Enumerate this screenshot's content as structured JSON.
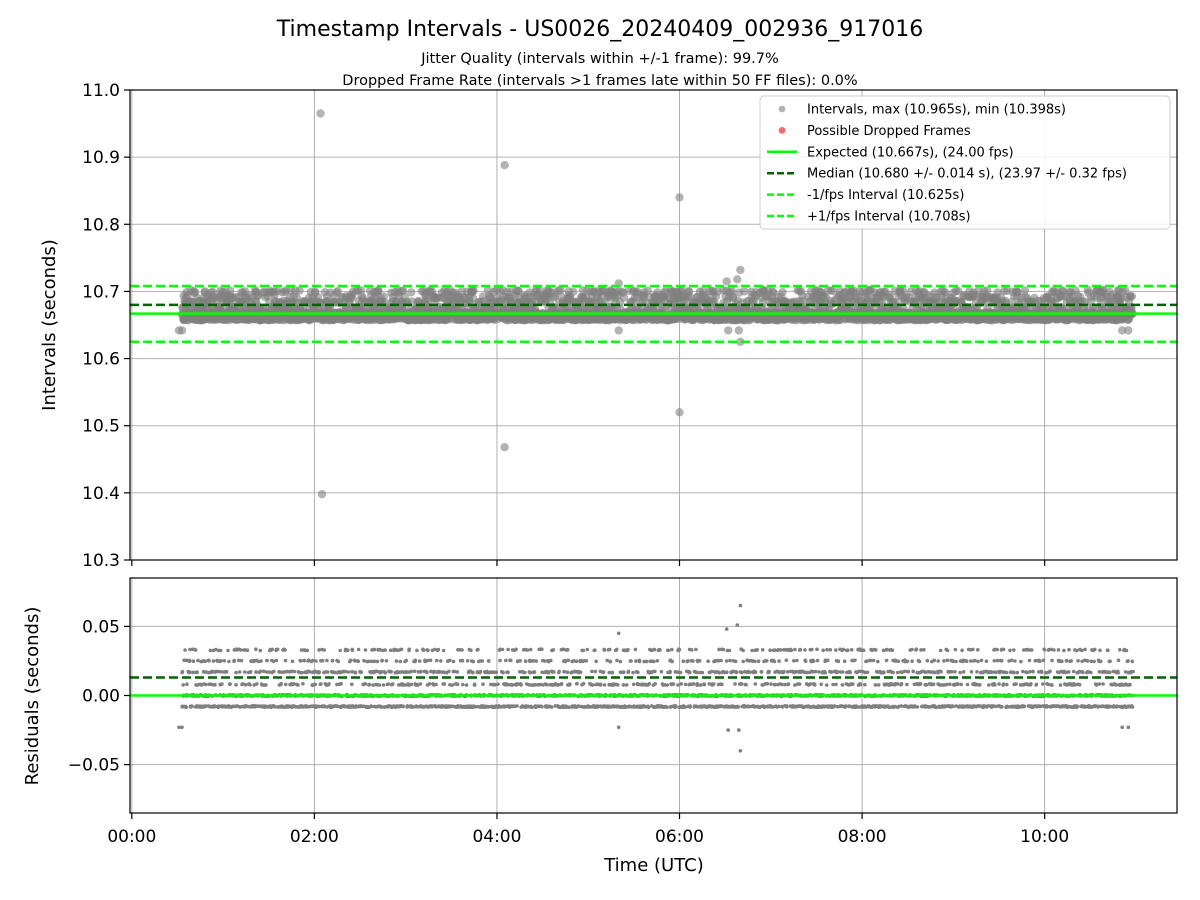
{
  "title": "Timestamp Intervals - US0026_20240409_002936_917016",
  "subtitle1": "Jitter Quality (intervals within +/-1 frame): 99.7%",
  "subtitle2": "Dropped Frame Rate (intervals >1 frames late within 50 FF files): 0.0%",
  "chart_data": [
    {
      "type": "scatter",
      "ylabel": "Intervals (seconds)",
      "ylim": [
        10.3,
        11.0
      ],
      "yticks": [
        10.3,
        10.4,
        10.5,
        10.6,
        10.7,
        10.8,
        10.9,
        11.0
      ],
      "ytick_labels": [
        "10.3",
        "10.4",
        "10.5",
        "10.6",
        "10.7",
        "10.8",
        "10.9",
        "11.0"
      ],
      "xlim_hours": [
        -0.02,
        11.45
      ],
      "grid": true,
      "legend_position": "top-right",
      "legend": [
        {
          "label": "Intervals, max (10.965s), min (10.398s)",
          "kind": "marker",
          "color": "#808080"
        },
        {
          "label": "Possible Dropped Frames",
          "kind": "marker",
          "color": "#ff0000"
        },
        {
          "label": "Expected (10.667s), (24.00 fps)",
          "kind": "solid",
          "color": "#00ff00"
        },
        {
          "label": "Median (10.680 +/- 0.014 s), (23.97 +/- 0.32 fps)",
          "kind": "dashed",
          "color": "#006400"
        },
        {
          "label": "-1/fps Interval (10.625s)",
          "kind": "dashed",
          "color": "#00ff00"
        },
        {
          "label": "+1/fps Interval (10.708s)",
          "kind": "dashed",
          "color": "#00ff00"
        }
      ],
      "hlines": [
        {
          "y": 10.667,
          "style": "solid",
          "color": "#00ff00"
        },
        {
          "y": 10.68,
          "style": "dashed",
          "color": "#006400"
        },
        {
          "y": 10.625,
          "style": "dashed",
          "color": "#00ff00"
        },
        {
          "y": 10.708,
          "style": "dashed",
          "color": "#00ff00"
        }
      ],
      "series": [
        {
          "marker_color": "#808080",
          "band": {
            "x_range": [
              "00:33",
              "10:58"
            ],
            "levels": [
              10.659,
              10.667,
              10.675,
              10.684,
              10.692,
              10.7
            ],
            "note": "dense band of thousands of intervals"
          },
          "outliers": [
            {
              "x": "02:04",
              "y": 10.965
            },
            {
              "x": "02:05",
              "y": 10.398
            },
            {
              "x": "04:05",
              "y": 10.888
            },
            {
              "x": "04:05",
              "y": 10.468
            },
            {
              "x": "06:00",
              "y": 10.84
            },
            {
              "x": "06:00",
              "y": 10.52
            },
            {
              "x": "06:40",
              "y": 10.732
            },
            {
              "x": "06:31",
              "y": 10.715
            },
            {
              "x": "06:38",
              "y": 10.718
            },
            {
              "x": "05:20",
              "y": 10.712
            },
            {
              "x": "06:40",
              "y": 10.625
            },
            {
              "x": "06:39",
              "y": 10.642
            },
            {
              "x": "06:32",
              "y": 10.642
            },
            {
              "x": "05:20",
              "y": 10.642
            },
            {
              "x": "00:31",
              "y": 10.642
            },
            {
              "x": "00:33",
              "y": 10.642
            },
            {
              "x": "10:51",
              "y": 10.642
            },
            {
              "x": "10:55",
              "y": 10.642
            }
          ]
        }
      ]
    },
    {
      "type": "scatter",
      "xlabel": "Time (UTC)",
      "ylabel": "Residuals (seconds)",
      "ylim": [
        -0.085,
        0.085
      ],
      "yticks": [
        -0.05,
        0.0,
        0.05
      ],
      "ytick_labels": [
        "−0.05",
        "0.00",
        "0.05"
      ],
      "xticks": [
        "00:00",
        "02:00",
        "04:00",
        "06:00",
        "08:00",
        "10:00"
      ],
      "xlim_hours": [
        -0.02,
        11.45
      ],
      "grid": true,
      "hlines": [
        {
          "y": 0.0,
          "style": "solid",
          "color": "#00ff00"
        },
        {
          "y": 0.013,
          "style": "dashed",
          "color": "#006400"
        }
      ],
      "series": [
        {
          "marker_color": "#808080",
          "band": {
            "x_range": [
              "00:33",
              "10:58"
            ],
            "levels": [
              -0.008,
              0.0,
              0.008,
              0.017,
              0.025,
              0.033
            ],
            "note": "dense band of residuals"
          },
          "outliers": [
            {
              "x": "06:40",
              "y": 0.065
            },
            {
              "x": "06:38",
              "y": 0.051
            },
            {
              "x": "05:20",
              "y": 0.045
            },
            {
              "x": "06:31",
              "y": 0.048
            },
            {
              "x": "06:40",
              "y": -0.04
            },
            {
              "x": "06:39",
              "y": -0.025
            },
            {
              "x": "06:32",
              "y": -0.025
            },
            {
              "x": "05:20",
              "y": -0.023
            },
            {
              "x": "00:31",
              "y": -0.023
            },
            {
              "x": "00:33",
              "y": -0.023
            },
            {
              "x": "10:51",
              "y": -0.023
            },
            {
              "x": "10:55",
              "y": -0.023
            }
          ]
        }
      ]
    }
  ]
}
